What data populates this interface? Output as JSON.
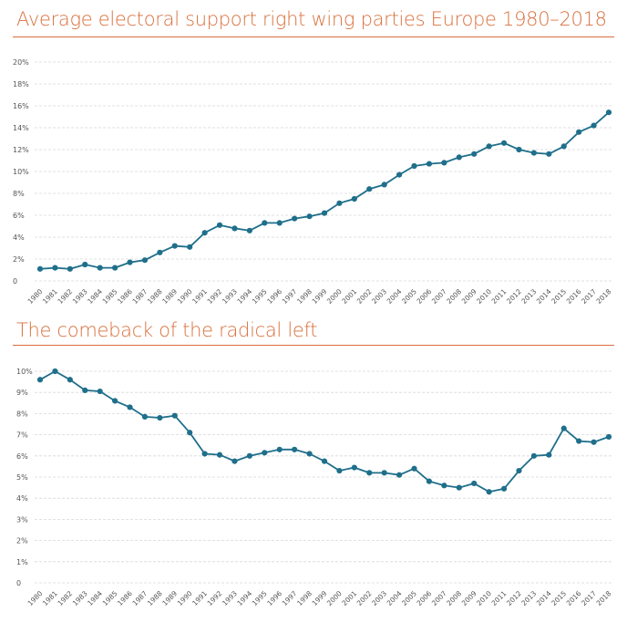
{
  "colors": {
    "title": "#d9703e",
    "series": "#1f6f8b",
    "grid": "#d7d7d7"
  },
  "chart_data": [
    {
      "type": "line",
      "title": "Average electoral support right wing parties Europe 1980–2018",
      "xlabel": "",
      "ylabel": "",
      "ylim": [
        0,
        20
      ],
      "yticks": [
        "0",
        "2%",
        "4%",
        "6%",
        "8%",
        "10%",
        "12%",
        "14%",
        "16%",
        "18%",
        "20%"
      ],
      "grid": true,
      "x": [
        "1980",
        "1981",
        "1982",
        "1983",
        "1984",
        "1985",
        "1986",
        "1987",
        "1988",
        "1989",
        "1990",
        "1991",
        "1992",
        "1993",
        "1994",
        "1995",
        "1996",
        "1997",
        "1998",
        "1999",
        "2000",
        "2001",
        "2002",
        "2003",
        "2004",
        "2005",
        "2006",
        "2007",
        "2008",
        "2009",
        "2010",
        "2011",
        "2012",
        "2013",
        "2014",
        "2015",
        "2016",
        "2017",
        "2018"
      ],
      "series": [
        {
          "values": [
            1.1,
            1.2,
            1.1,
            1.5,
            1.2,
            1.2,
            1.7,
            1.9,
            2.6,
            3.2,
            3.1,
            4.4,
            5.1,
            4.8,
            4.6,
            5.3,
            5.3,
            5.7,
            5.9,
            6.2,
            7.1,
            7.5,
            8.4,
            8.8,
            9.7,
            10.5,
            10.7,
            10.8,
            11.3,
            11.6,
            12.3,
            12.6,
            12.0,
            11.7,
            11.6,
            12.3,
            13.6,
            14.2,
            15.4
          ]
        }
      ]
    },
    {
      "type": "line",
      "title": "The comeback of the radical left",
      "xlabel": "",
      "ylabel": "",
      "ylim": [
        0,
        10
      ],
      "yticks": [
        "0",
        "1%",
        "2%",
        "3%",
        "4%",
        "5%",
        "6%",
        "7%",
        "8%",
        "9%",
        "10%"
      ],
      "grid": true,
      "x": [
        "1980",
        "1981",
        "1982",
        "1983",
        "1984",
        "1985",
        "1986",
        "1987",
        "1988",
        "1989",
        "1990",
        "1991",
        "1992",
        "1993",
        "1994",
        "1995",
        "1996",
        "1997",
        "1998",
        "1999",
        "2000",
        "2001",
        "2002",
        "2003",
        "2004",
        "2005",
        "2006",
        "2007",
        "2008",
        "2009",
        "2010",
        "2011",
        "2012",
        "2013",
        "2014",
        "2015",
        "2016",
        "2017",
        "2018"
      ],
      "series": [
        {
          "values": [
            9.6,
            10.0,
            9.6,
            9.1,
            9.05,
            8.6,
            8.3,
            7.85,
            7.8,
            7.9,
            7.1,
            6.1,
            6.05,
            5.75,
            6.0,
            6.15,
            6.3,
            6.3,
            6.1,
            5.75,
            5.3,
            5.45,
            5.2,
            5.2,
            5.1,
            5.4,
            4.8,
            4.6,
            4.5,
            4.7,
            4.3,
            4.45,
            5.3,
            6.0,
            6.05,
            7.3,
            6.7,
            6.65,
            6.9
          ]
        }
      ]
    }
  ]
}
